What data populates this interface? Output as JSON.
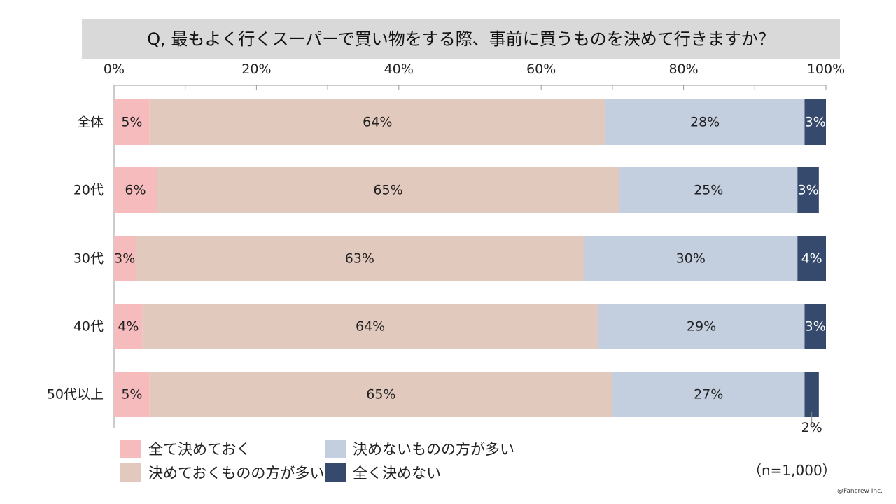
{
  "chart_data": {
    "type": "bar",
    "stacked": "100%",
    "orientation": "horizontal",
    "title": "Q, 最もよく行くスーパーで買い物をする際、事前に買うものを決めて行きますか？",
    "categories": [
      "全体",
      "20代",
      "30代",
      "40代",
      "50代以上"
    ],
    "series": [
      {
        "name": "全て決めておく",
        "values": [
          5,
          6,
          3,
          4,
          5
        ],
        "color": "#f6bcbd"
      },
      {
        "name": "決めておくものの方が多い",
        "values": [
          64,
          65,
          63,
          64,
          65
        ],
        "color": "#e2c9bd"
      },
      {
        "name": "決めないものの方が多い",
        "values": [
          28,
          25,
          30,
          29,
          27
        ],
        "color": "#c3cede"
      },
      {
        "name": "全く決めない",
        "values": [
          3,
          3,
          4,
          3,
          2
        ],
        "color": "#354a6c"
      }
    ],
    "data_labels": [
      [
        "5%",
        "64%",
        "28%",
        "3%"
      ],
      [
        "6%",
        "65%",
        "25%",
        "3%"
      ],
      [
        "3%",
        "63%",
        "30%",
        "4%"
      ],
      [
        "4%",
        "64%",
        "29%",
        "3%"
      ],
      [
        "5%",
        "65%",
        "27%",
        "2%"
      ]
    ],
    "xticks": [
      "0%",
      "20%",
      "40%",
      "60%",
      "80%",
      "100%"
    ],
    "xlim": [
      0,
      100
    ],
    "legend_position": "bottom"
  },
  "note": "（n=1,000）",
  "credit": "@Fancrew Inc."
}
